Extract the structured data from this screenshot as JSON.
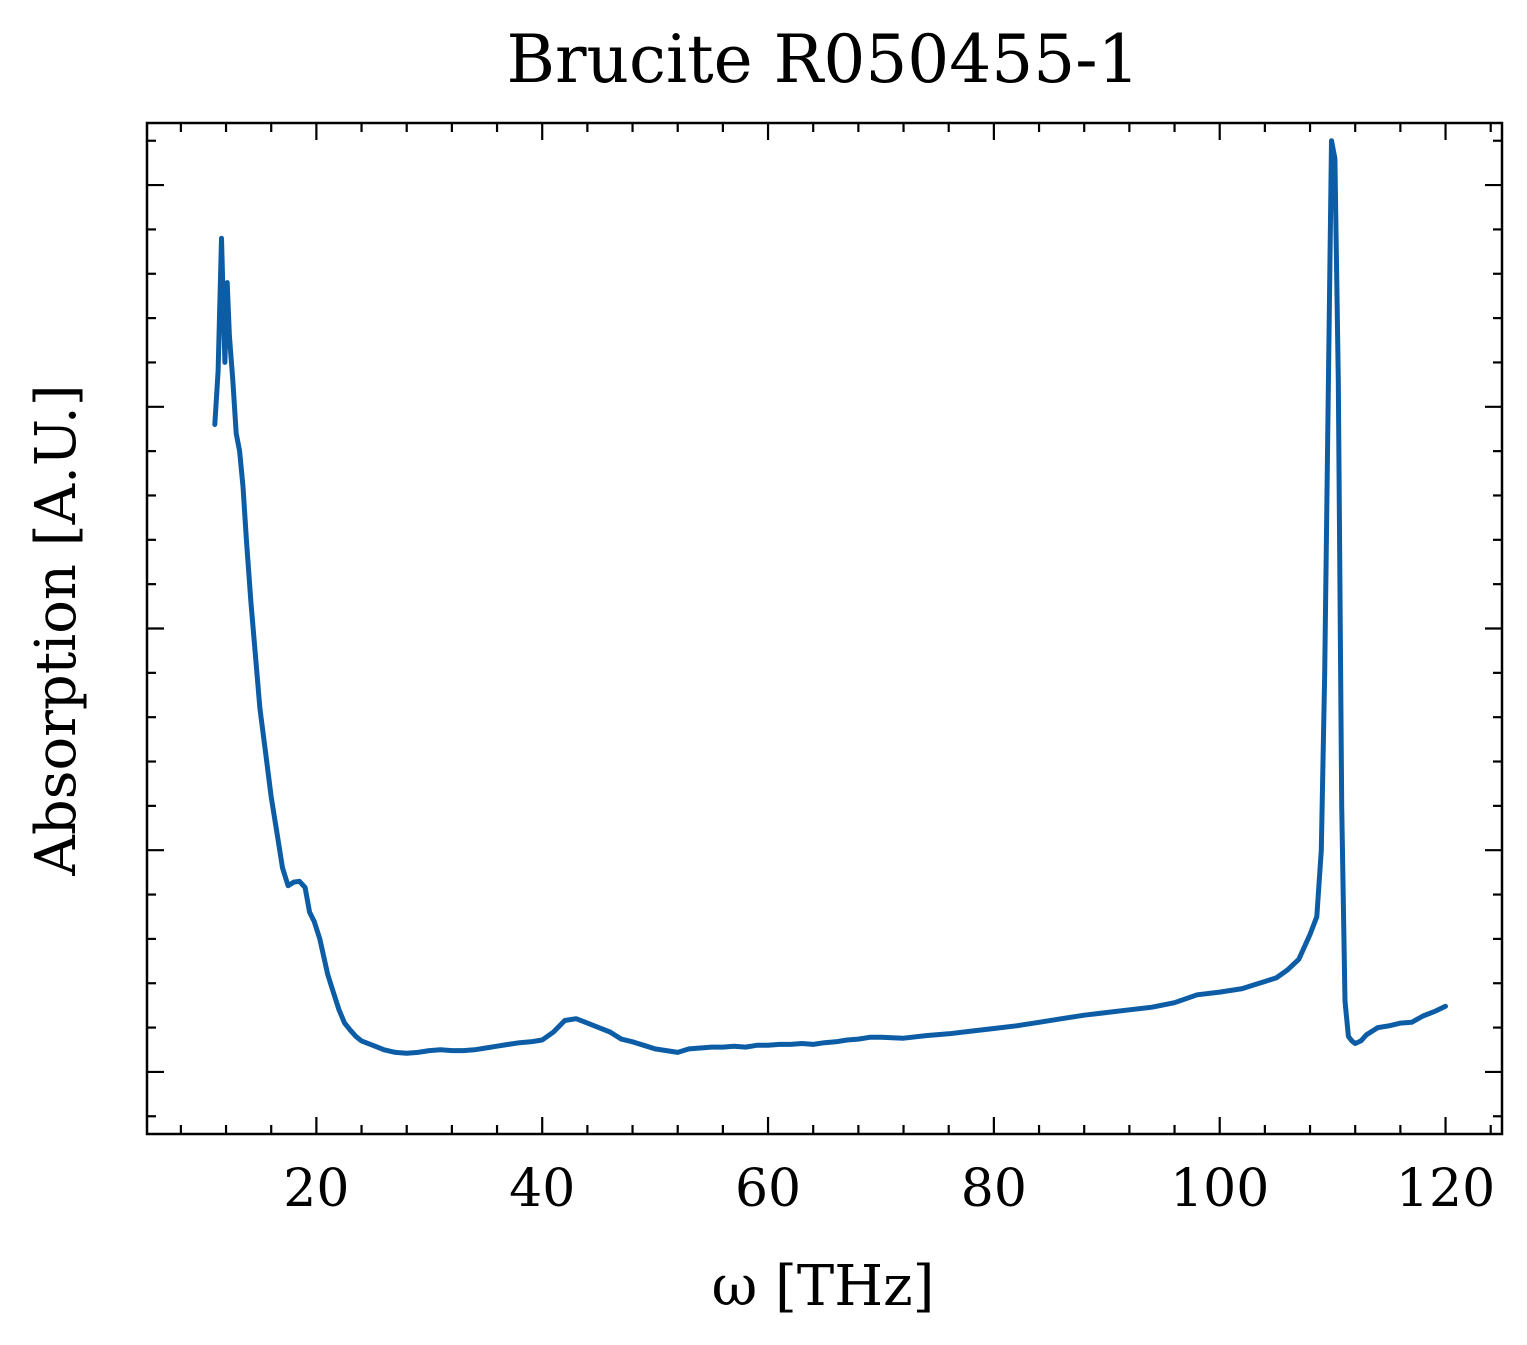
{
  "chart_data": {
    "type": "line",
    "title": "Brucite R050455-1",
    "xlabel": "ω [THz]",
    "ylabel": "Absorption [A.U.]",
    "xlim": [
      5,
      125
    ],
    "ylim": [
      -0.07,
      1.07
    ],
    "x_ticks": [
      20,
      40,
      60,
      80,
      100,
      120
    ],
    "x_minor_step": 4,
    "y_ticks": [
      0.0,
      0.25,
      0.5,
      0.75,
      1.0
    ],
    "y_minor_step": 0.05,
    "y_tick_labels_shown": false,
    "grid": false,
    "legend": "none",
    "line_color": "#0c5da5",
    "series": [
      {
        "x": [
          11.0,
          11.3,
          11.6,
          11.9,
          12.1,
          12.3,
          12.6,
          12.9,
          13.2,
          13.5,
          13.8,
          14.2,
          14.6,
          15.0,
          15.5,
          16.0,
          16.5,
          17.0,
          17.5,
          18.0,
          18.5,
          19.0,
          19.4,
          19.8,
          20.3,
          21.0,
          21.5,
          22.0,
          22.5,
          23.0,
          23.5,
          24.0,
          25.0,
          26.0,
          27.0,
          28.0,
          29.0,
          30.0,
          31.0,
          32.0,
          33.0,
          34.0,
          35.0,
          36.0,
          37.0,
          38.0,
          39.0,
          40.0,
          41.0,
          42.0,
          43.0,
          44.0,
          45.0,
          46.0,
          47.0,
          48.0,
          49.0,
          50.0,
          51.0,
          52.0,
          53.0,
          54.0,
          55.0,
          56.0,
          57.0,
          58.0,
          59.0,
          60.0,
          61.0,
          62.0,
          63.0,
          64.0,
          65.0,
          66.0,
          67.0,
          68.0,
          69.0,
          70.0,
          72.0,
          74.0,
          76.0,
          78.0,
          80.0,
          82.0,
          84.0,
          86.0,
          88.0,
          90.0,
          92.0,
          94.0,
          96.0,
          98.0,
          100.0,
          102.0,
          103.0,
          104.0,
          105.0,
          106.0,
          107.0,
          108.0,
          108.6,
          109.0,
          109.3,
          109.6,
          109.9,
          110.2,
          110.5,
          110.8,
          111.1,
          111.4,
          111.7,
          112.0,
          112.5,
          113.0,
          114.0,
          115.0,
          116.0,
          117.0,
          118.0,
          119.0,
          120.0
        ],
        "y": [
          0.73,
          0.79,
          0.94,
          0.8,
          0.89,
          0.83,
          0.78,
          0.72,
          0.7,
          0.66,
          0.6,
          0.53,
          0.47,
          0.41,
          0.36,
          0.31,
          0.27,
          0.23,
          0.21,
          0.214,
          0.215,
          0.208,
          0.18,
          0.17,
          0.15,
          0.11,
          0.09,
          0.07,
          0.055,
          0.047,
          0.04,
          0.035,
          0.03,
          0.025,
          0.022,
          0.021,
          0.022,
          0.024,
          0.025,
          0.024,
          0.024,
          0.025,
          0.027,
          0.029,
          0.031,
          0.033,
          0.034,
          0.036,
          0.045,
          0.058,
          0.06,
          0.055,
          0.05,
          0.045,
          0.037,
          0.034,
          0.03,
          0.026,
          0.024,
          0.022,
          0.026,
          0.027,
          0.028,
          0.028,
          0.029,
          0.028,
          0.03,
          0.03,
          0.031,
          0.031,
          0.032,
          0.031,
          0.033,
          0.034,
          0.036,
          0.037,
          0.039,
          0.039,
          0.038,
          0.041,
          0.043,
          0.046,
          0.049,
          0.052,
          0.056,
          0.06,
          0.064,
          0.067,
          0.07,
          0.073,
          0.078,
          0.087,
          0.09,
          0.094,
          0.098,
          0.102,
          0.106,
          0.115,
          0.127,
          0.155,
          0.175,
          0.25,
          0.45,
          0.75,
          1.05,
          1.03,
          0.78,
          0.3,
          0.08,
          0.04,
          0.035,
          0.032,
          0.035,
          0.042,
          0.05,
          0.052,
          0.055,
          0.056,
          0.063,
          0.068,
          0.074
        ]
      }
    ]
  }
}
